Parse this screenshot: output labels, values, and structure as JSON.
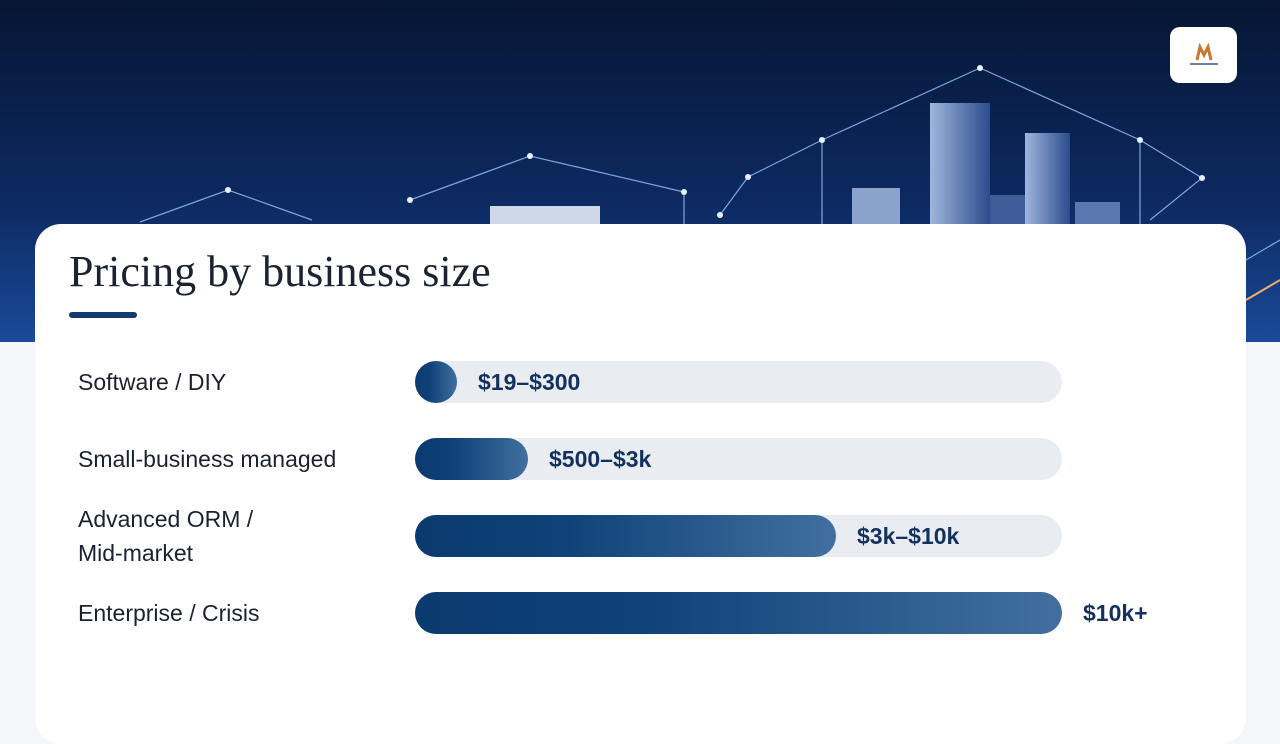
{
  "header": {
    "title": "Pricing by business size"
  },
  "rows": [
    {
      "label": "Software / DIY",
      "price": "$19–$300"
    },
    {
      "label": "Small-business managed",
      "price": "$500–$3k"
    },
    {
      "label": "Advanced ORM / Mid-market",
      "price": "$3k–$10k"
    },
    {
      "label": "Enterprise / Crisis",
      "price": "$10k+"
    }
  ]
}
